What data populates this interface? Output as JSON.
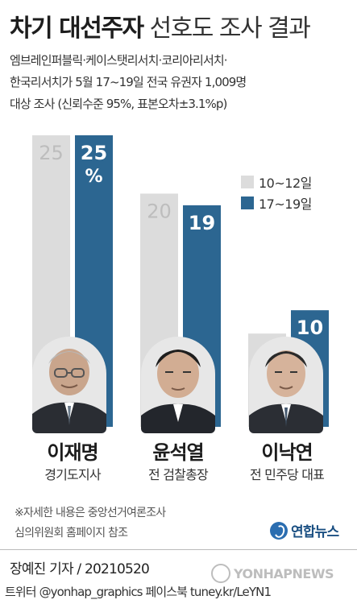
{
  "title_bold": "차기 대선주자",
  "title_light": "선호도 조사 결과",
  "subtitle_lines": [
    "엠브레인퍼블릭·케이스탯리서치·코리아리서치·",
    "한국리서치가 5월 17~19일 전국 유권자 1,009명",
    "대상 조사 (신뢰수준 95%, 표본오차±3.1%p)"
  ],
  "colors": {
    "prev": "#dcdcdc",
    "curr": "#2c6691",
    "prev_label": "#bdbdbd",
    "curr_label": "#ffffff"
  },
  "chart_data": {
    "type": "bar",
    "categories": [
      "이재명",
      "윤석열",
      "이낙연"
    ],
    "series": [
      {
        "name": "10~12일",
        "values": [
          25,
          20,
          8
        ]
      },
      {
        "name": "17~19일",
        "values": [
          25,
          19,
          10
        ]
      }
    ],
    "unit": "%",
    "ylim": [
      0,
      25
    ],
    "legend_position": "top-right",
    "grid": false
  },
  "candidates": [
    {
      "name": "이재명",
      "role": "경기도지사",
      "photo": "portrait-lee-jae-myung"
    },
    {
      "name": "윤석열",
      "role": "전 검찰총장",
      "photo": "portrait-yoon-seok-youl"
    },
    {
      "name": "이낙연",
      "role": "전 민주당 대표",
      "photo": "portrait-lee-nak-yon"
    }
  ],
  "notes": [
    "※자세한 내용은 중앙선거여론조사",
    "심의위원회 홈페이지 참조"
  ],
  "logo_text": "연합뉴스",
  "credit": "장예진 기자 / 20210520",
  "social": "트위터 @yonhap_graphics  페이스북 tuney.kr/LeYN1",
  "watermark": "YONHAPNEWS"
}
